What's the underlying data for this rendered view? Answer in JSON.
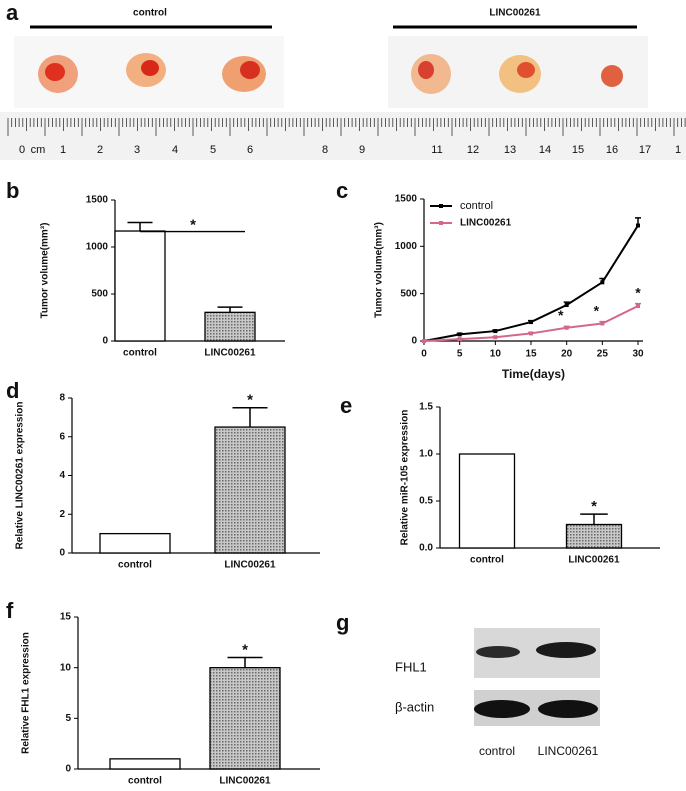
{
  "figure": {
    "panel_a": {
      "letter": "a",
      "groups": [
        "control",
        "LINC00261"
      ],
      "ruler": [
        "0",
        "cm",
        "1",
        "2",
        "3",
        "4",
        "5",
        "6",
        "8",
        "9",
        "11",
        "12",
        "13",
        "14",
        "15",
        "16",
        "17",
        "1"
      ]
    },
    "panel_g": {
      "letter": "g",
      "rows": [
        "FHL1",
        "β-actin"
      ],
      "lanes": [
        "control",
        "LINC00261"
      ]
    }
  },
  "chart_data": [
    {
      "type": "bar",
      "panel": "b",
      "ylabel": "Tumor volume(mm³)",
      "categories": [
        "control",
        "LINC00261"
      ],
      "values": [
        1170,
        305
      ],
      "errors": [
        90,
        55
      ],
      "colors": [
        "#ffffff",
        "#a0a0a0"
      ],
      "ylim": [
        0,
        1500
      ],
      "yticks": [
        0,
        500,
        1000,
        1500
      ],
      "annotation": "*",
      "significance_bracket": true
    },
    {
      "type": "line",
      "panel": "c",
      "ylabel": "Tumor volume(mm³)",
      "xlabel": "Time(days)",
      "x": [
        0,
        5,
        10,
        15,
        20,
        25,
        30
      ],
      "series": [
        {
          "name": "control",
          "color": "#000000",
          "values": [
            0,
            70,
            105,
            200,
            380,
            620,
            1220
          ],
          "errors": [
            0,
            10,
            10,
            15,
            30,
            40,
            80
          ]
        },
        {
          "name": "LINC00261",
          "color": "#d4688c",
          "values": [
            0,
            20,
            40,
            80,
            140,
            185,
            370
          ],
          "errors": [
            0,
            5,
            5,
            10,
            15,
            20,
            25
          ]
        }
      ],
      "xlim": [
        0,
        30
      ],
      "xticks": [
        0,
        5,
        10,
        15,
        20,
        25,
        30
      ],
      "ylim": [
        0,
        1500
      ],
      "yticks": [
        0,
        500,
        1000,
        1500
      ],
      "annotations": [
        {
          "x": 20,
          "label": "*"
        },
        {
          "x": 25,
          "label": "*"
        },
        {
          "x": 30,
          "label": "*"
        }
      ]
    },
    {
      "type": "bar",
      "panel": "d",
      "ylabel": "Relative LINC00261 expression",
      "categories": [
        "control",
        "LINC00261"
      ],
      "values": [
        1,
        6.5
      ],
      "errors": [
        null,
        1.0
      ],
      "colors": [
        "#ffffff",
        "#a0a0a0"
      ],
      "ylim": [
        0,
        8
      ],
      "yticks": [
        0,
        2,
        4,
        6,
        8
      ],
      "annotation": "*",
      "significance_bracket": false
    },
    {
      "type": "bar",
      "panel": "e",
      "ylabel": "Relative miR-105 expression",
      "categories": [
        "control",
        "LINC00261"
      ],
      "values": [
        1,
        0.25
      ],
      "errors": [
        null,
        0.11
      ],
      "colors": [
        "#ffffff",
        "#a0a0a0"
      ],
      "ylim": [
        0,
        1.5
      ],
      "yticks": [
        {
          "value": 0,
          "label": "0.0"
        },
        0.5,
        {
          "value": 1,
          "label": "1.0"
        },
        1.5
      ],
      "annotation": "*",
      "significance_bracket": false
    },
    {
      "type": "bar",
      "panel": "f",
      "ylabel": "Relative  FHL1 expression",
      "categories": [
        "control",
        "LINC00261"
      ],
      "values": [
        1,
        10
      ],
      "errors": [
        null,
        1
      ],
      "colors": [
        "#ffffff",
        "#a0a0a0"
      ],
      "ylim": [
        0,
        15
      ],
      "yticks": [
        0,
        5,
        10,
        15
      ],
      "annotation": "*",
      "significance_bracket": false
    }
  ]
}
